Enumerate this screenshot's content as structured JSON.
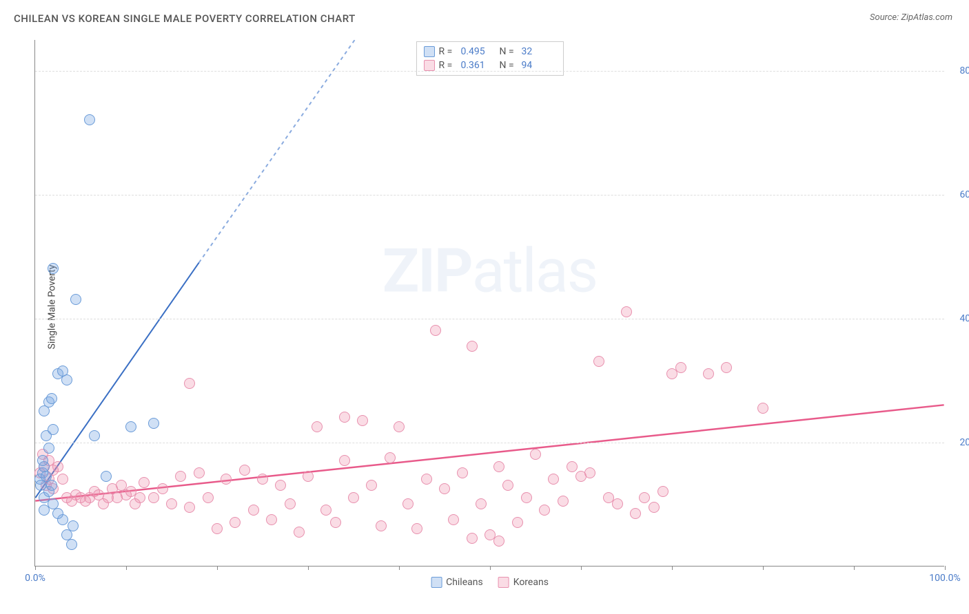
{
  "title": "CHILEAN VS KOREAN SINGLE MALE POVERTY CORRELATION CHART",
  "source_label": "Source:",
  "source_name": "ZipAtlas.com",
  "y_axis_label": "Single Male Poverty",
  "watermark_bold": "ZIP",
  "watermark_light": "atlas",
  "chart": {
    "type": "scatter",
    "xlim": [
      0,
      100
    ],
    "ylim": [
      0,
      85
    ],
    "x_ticks": [
      0,
      10,
      20,
      30,
      40,
      50,
      60,
      70,
      80,
      90,
      100
    ],
    "x_tick_labels_shown": {
      "0": "0.0%",
      "100": "100.0%"
    },
    "y_ticks": [
      20,
      40,
      60,
      80
    ],
    "y_tick_labels": {
      "20": "20.0%",
      "40": "40.0%",
      "60": "60.0%",
      "80": "80.0%"
    },
    "background_color": "#ffffff",
    "grid_color": "#dddddd",
    "axis_color": "#888888",
    "tick_label_color": "#4a7bc8",
    "point_radius": 8,
    "series": [
      {
        "name": "Chileans",
        "fill_color": "rgba(120,165,225,0.35)",
        "stroke_color": "#6a9bd8",
        "R": "0.495",
        "N": "32",
        "trend": {
          "x1": 0,
          "y1": 11,
          "x2": 18,
          "y2": 49,
          "x2_ext": 38,
          "y2_ext": 91,
          "solid_color": "#3a6fc4",
          "dash_color": "#8aabdf",
          "width": 2
        },
        "points": [
          [
            0.5,
            14
          ],
          [
            0.8,
            15
          ],
          [
            0.6,
            13
          ],
          [
            1.0,
            16
          ],
          [
            1.2,
            14.5
          ],
          [
            1.0,
            11
          ],
          [
            1.5,
            12
          ],
          [
            0.8,
            17
          ],
          [
            1.0,
            25
          ],
          [
            1.5,
            26.5
          ],
          [
            1.8,
            27
          ],
          [
            1.2,
            21
          ],
          [
            2.0,
            22
          ],
          [
            1.5,
            19
          ],
          [
            2.5,
            31
          ],
          [
            3.0,
            31.5
          ],
          [
            3.5,
            30
          ],
          [
            4.0,
            3.5
          ],
          [
            3.5,
            5
          ],
          [
            4.2,
            6.5
          ],
          [
            3.0,
            7.5
          ],
          [
            6.5,
            21
          ],
          [
            7.8,
            14.5
          ],
          [
            10.5,
            22.5
          ],
          [
            13.0,
            23
          ],
          [
            4.5,
            43
          ],
          [
            2.0,
            48
          ],
          [
            6.0,
            72
          ],
          [
            1.0,
            9
          ],
          [
            2.0,
            10
          ],
          [
            2.5,
            8.5
          ],
          [
            1.8,
            13
          ]
        ]
      },
      {
        "name": "Koreans",
        "fill_color": "rgba(240,140,170,0.30)",
        "stroke_color": "#e890ae",
        "R": "0.361",
        "N": "94",
        "trend": {
          "x1": 0,
          "y1": 10.5,
          "x2": 100,
          "y2": 26,
          "solid_color": "#e85a8a",
          "width": 2.5
        },
        "points": [
          [
            0.5,
            15
          ],
          [
            1,
            16
          ],
          [
            1.5,
            14
          ],
          [
            2,
            15.5
          ],
          [
            1.5,
            17
          ],
          [
            0.8,
            18
          ],
          [
            2.5,
            16
          ],
          [
            1.2,
            13
          ],
          [
            2.0,
            12.5
          ],
          [
            3.0,
            14
          ],
          [
            3.5,
            11
          ],
          [
            4.0,
            10.5
          ],
          [
            4.5,
            11.5
          ],
          [
            5.0,
            11
          ],
          [
            5.5,
            10.5
          ],
          [
            6.0,
            11
          ],
          [
            6.5,
            12
          ],
          [
            7.0,
            11.5
          ],
          [
            7.5,
            10
          ],
          [
            8.0,
            11
          ],
          [
            8.5,
            12.5
          ],
          [
            9.0,
            11
          ],
          [
            9.5,
            13
          ],
          [
            10,
            11.5
          ],
          [
            10.5,
            12
          ],
          [
            11,
            10
          ],
          [
            11.5,
            11
          ],
          [
            12,
            13.5
          ],
          [
            13,
            11
          ],
          [
            14,
            12.5
          ],
          [
            15,
            10
          ],
          [
            16,
            14.5
          ],
          [
            17,
            9.5
          ],
          [
            18,
            15
          ],
          [
            19,
            11
          ],
          [
            20,
            6
          ],
          [
            21,
            14
          ],
          [
            22,
            7
          ],
          [
            23,
            15.5
          ],
          [
            24,
            9
          ],
          [
            25,
            14
          ],
          [
            26,
            7.5
          ],
          [
            27,
            13
          ],
          [
            28,
            10
          ],
          [
            29,
            5.5
          ],
          [
            30,
            14.5
          ],
          [
            31,
            22.5
          ],
          [
            32,
            9
          ],
          [
            33,
            7
          ],
          [
            34,
            17
          ],
          [
            35,
            11
          ],
          [
            36,
            23.5
          ],
          [
            37,
            13
          ],
          [
            38,
            6.5
          ],
          [
            39,
            17.5
          ],
          [
            40,
            22.5
          ],
          [
            41,
            10
          ],
          [
            42,
            6
          ],
          [
            43,
            14
          ],
          [
            44,
            38
          ],
          [
            45,
            12.5
          ],
          [
            46,
            7.5
          ],
          [
            47,
            15
          ],
          [
            48,
            35.5
          ],
          [
            49,
            10
          ],
          [
            50,
            5
          ],
          [
            51,
            16
          ],
          [
            52,
            13
          ],
          [
            53,
            7
          ],
          [
            54,
            11
          ],
          [
            55,
            18
          ],
          [
            56,
            9
          ],
          [
            57,
            14
          ],
          [
            58,
            10.5
          ],
          [
            59,
            16
          ],
          [
            60,
            14.5
          ],
          [
            61,
            15
          ],
          [
            62,
            33
          ],
          [
            63,
            11
          ],
          [
            64,
            10
          ],
          [
            65,
            41
          ],
          [
            66,
            8.5
          ],
          [
            67,
            11
          ],
          [
            68,
            9.5
          ],
          [
            69,
            12
          ],
          [
            70,
            31
          ],
          [
            71,
            32
          ],
          [
            74,
            31
          ],
          [
            76,
            32
          ],
          [
            80,
            25.5
          ],
          [
            17,
            29.5
          ],
          [
            34,
            24
          ],
          [
            48,
            4.5
          ],
          [
            51,
            4
          ]
        ]
      }
    ]
  },
  "stats_box": {
    "rows": [
      {
        "swatch_fill": "rgba(120,165,225,0.35)",
        "swatch_border": "#6a9bd8",
        "r_label": "R =",
        "r_val": "0.495",
        "n_label": "N =",
        "n_val": "32"
      },
      {
        "swatch_fill": "rgba(240,140,170,0.30)",
        "swatch_border": "#e890ae",
        "r_label": "R =",
        "r_val": "0.361",
        "n_label": "N =",
        "n_val": "94"
      }
    ]
  },
  "legend": [
    {
      "swatch_fill": "rgba(120,165,225,0.35)",
      "swatch_border": "#6a9bd8",
      "label": "Chileans"
    },
    {
      "swatch_fill": "rgba(240,140,170,0.30)",
      "swatch_border": "#e890ae",
      "label": "Koreans"
    }
  ]
}
